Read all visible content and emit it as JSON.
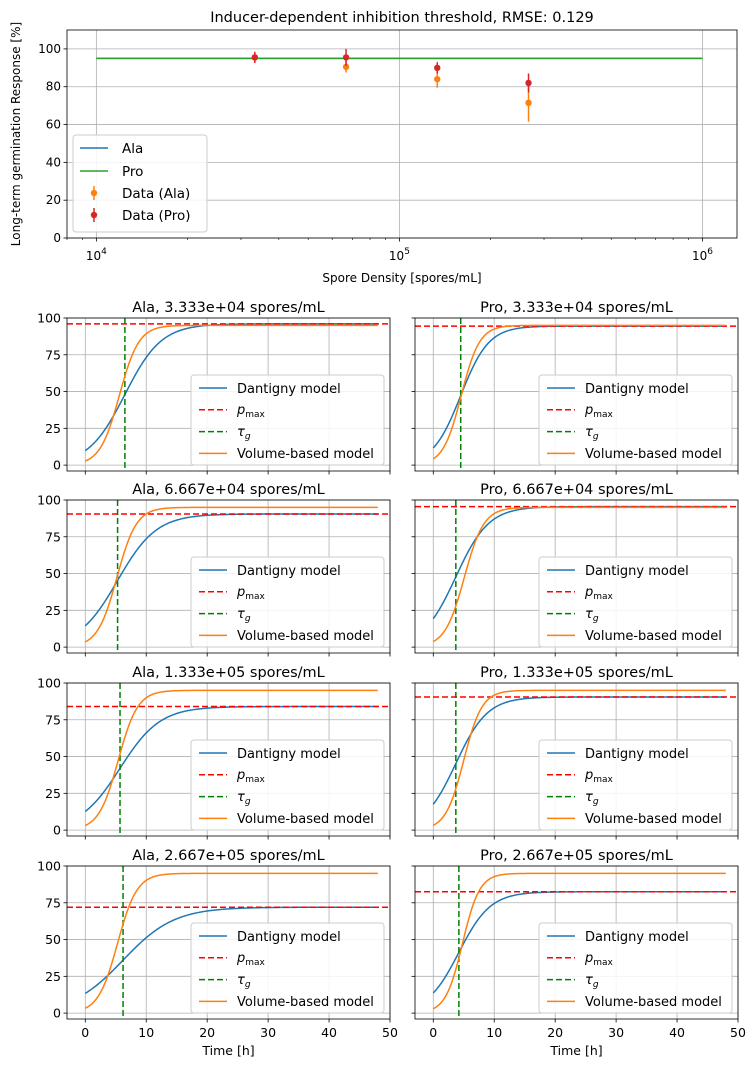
{
  "chart_data": [
    {
      "type": "scatter",
      "title": "Inducer-dependent inhibition threshold, RMSE: 0.129",
      "xlabel": "Spore Density [spores/mL]",
      "ylabel": "Long-term germination Response [%]",
      "xscale": "log",
      "xlim": [
        8000,
        1300000
      ],
      "ylim": [
        0,
        110
      ],
      "yticks": [
        "0",
        "20",
        "40",
        "60",
        "80",
        "100"
      ],
      "xticks": [
        {
          "base": "10",
          "exp": "4",
          "value": 10000
        },
        {
          "base": "10",
          "exp": "5",
          "value": 100000
        },
        {
          "base": "10",
          "exp": "6",
          "value": 1000000
        }
      ],
      "grid": true,
      "legend_position": "lower-left",
      "lines": [
        {
          "name": "Ala",
          "color": "#1f77b4",
          "x": [
            10000,
            1000000
          ],
          "y": [
            95,
            95
          ]
        },
        {
          "name": "Pro",
          "color": "#2ca02c",
          "x": [
            10000,
            1000000
          ],
          "y": [
            95,
            95
          ]
        }
      ],
      "series": [
        {
          "name": "Data (Ala)",
          "color": "#ff7f0e",
          "x": [
            33330,
            66670,
            133300,
            266700
          ],
          "y": [
            95.5,
            90.5,
            84,
            71.5
          ],
          "err": [
            2.5,
            3,
            4.5,
            10
          ]
        },
        {
          "name": "Data (Pro)",
          "color": "#d62728",
          "x": [
            33330,
            66670,
            133300,
            266700
          ],
          "y": [
            95.5,
            95.5,
            90,
            82
          ],
          "err": [
            3,
            4.5,
            3,
            5
          ]
        }
      ]
    },
    {
      "type": "line",
      "title": "Ala, 3.333e+04 spores/mL",
      "xlabel": "",
      "ylim": [
        -4,
        100
      ],
      "xlim": [
        -3,
        50
      ],
      "pmax": 96,
      "tau": 6.5,
      "dantigny": {
        "tau": 6.5,
        "d": 3,
        "pmax": 96
      },
      "volume": {
        "tau": 5.6,
        "d": 1.6,
        "pmax": 95
      }
    },
    {
      "type": "line",
      "title": "Pro, 3.333e+04 spores/mL",
      "xlabel": "",
      "ylim": [
        -4,
        100
      ],
      "xlim": [
        -3,
        50
      ],
      "pmax": 94.5,
      "tau": 4.5,
      "dantigny": {
        "tau": 4.5,
        "d": 2.3,
        "pmax": 94.5
      },
      "volume": {
        "tau": 4.6,
        "d": 1.5,
        "pmax": 95
      }
    },
    {
      "type": "line",
      "title": "Ala, 6.667e+04 spores/mL",
      "xlabel": "",
      "ylim": [
        -4,
        100
      ],
      "xlim": [
        -3,
        50
      ],
      "pmax": 90.5,
      "tau": 5.3,
      "dantigny": {
        "tau": 5.3,
        "d": 3.2,
        "pmax": 90.5
      },
      "volume": {
        "tau": 5.2,
        "d": 1.6,
        "pmax": 95
      }
    },
    {
      "type": "line",
      "title": "Pro, 6.667e+04 spores/mL",
      "xlabel": "",
      "ylim": [
        -4,
        100
      ],
      "xlim": [
        -3,
        50
      ],
      "pmax": 95.5,
      "tau": 3.7,
      "dantigny": {
        "tau": 3.7,
        "d": 2.7,
        "pmax": 95.5
      },
      "volume": {
        "tau": 5.1,
        "d": 1.6,
        "pmax": 95
      }
    },
    {
      "type": "line",
      "title": "Ala, 1.333e+05 spores/mL",
      "xlabel": "",
      "ylim": [
        -4,
        100
      ],
      "xlim": [
        -3,
        50
      ],
      "pmax": 84,
      "tau": 5.7,
      "dantigny": {
        "tau": 5.7,
        "d": 3.3,
        "pmax": 84
      },
      "volume": {
        "tau": 5.4,
        "d": 1.6,
        "pmax": 95
      }
    },
    {
      "type": "line",
      "title": "Pro, 1.333e+05 spores/mL",
      "xlabel": "",
      "ylim": [
        -4,
        100
      ],
      "xlim": [
        -3,
        50
      ],
      "pmax": 90.5,
      "tau": 3.7,
      "dantigny": {
        "tau": 3.7,
        "d": 2.6,
        "pmax": 90.5
      },
      "volume": {
        "tau": 5.0,
        "d": 1.5,
        "pmax": 95
      }
    },
    {
      "type": "line",
      "title": "Ala, 2.667e+05 spores/mL",
      "xlabel": "Time [h]",
      "ylim": [
        -4,
        100
      ],
      "xlim": [
        -3,
        50
      ],
      "pmax": 72,
      "tau": 6.2,
      "dantigny": {
        "tau": 6.2,
        "d": 4.2,
        "pmax": 72
      },
      "volume": {
        "tau": 5.3,
        "d": 1.6,
        "pmax": 95
      }
    },
    {
      "type": "line",
      "title": "Pro, 2.667e+05 spores/mL",
      "xlabel": "Time [h]",
      "ylim": [
        -4,
        100
      ],
      "xlim": [
        -3,
        50
      ],
      "pmax": 82.5,
      "tau": 4.2,
      "dantigny": {
        "tau": 4.2,
        "d": 2.6,
        "pmax": 82.5
      },
      "volume": {
        "tau": 4.8,
        "d": 1.4,
        "pmax": 95
      }
    }
  ],
  "small_legend": [
    "Dantigny model",
    "p",
    "max",
    "τ",
    "g",
    "Volume-based model"
  ],
  "small_yticks": [
    "0",
    "25",
    "50",
    "75",
    "100"
  ],
  "small_xticks": [
    "0",
    "10",
    "20",
    "30",
    "40",
    "50"
  ],
  "colors": {
    "dantigny": "#1f77b4",
    "pmax": "#ff0000",
    "tau": "#008000",
    "volume": "#ff7f0e",
    "grid": "#b0b0b0"
  }
}
